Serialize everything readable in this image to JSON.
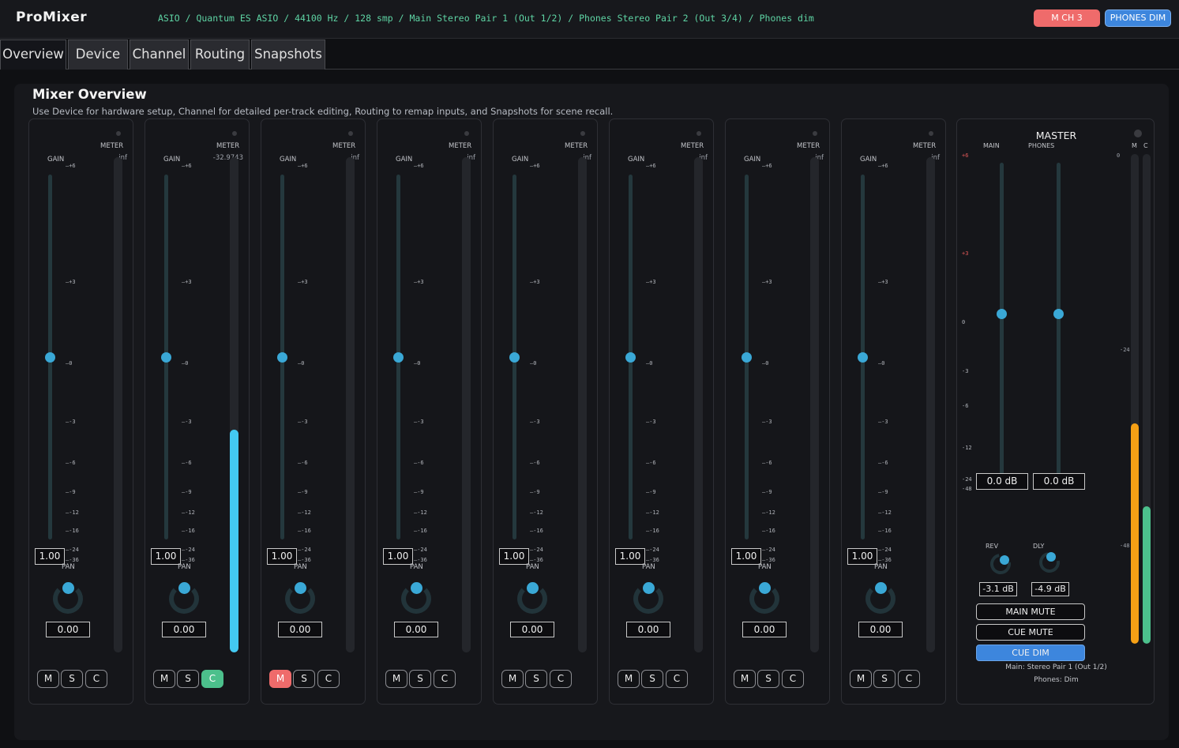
{
  "app": {
    "title": "ProMixer",
    "status": "ASIO / Quantum ES ASIO / 44100 Hz / 128 smp / Main Stereo Pair 1 (Out 1/2) / Phones Stereo Pair 2 (Out 3/4) / Phones dim",
    "badges": {
      "mch": "M CH 3",
      "phones_dim": "PHONES DIM"
    }
  },
  "tabs": [
    {
      "label": "Overview",
      "active": true
    },
    {
      "label": "Device"
    },
    {
      "label": "Channel"
    },
    {
      "label": "Routing"
    },
    {
      "label": "Snapshots"
    }
  ],
  "overview": {
    "title": "Mixer Overview",
    "subtitle": "Use Device for hardware setup, Channel for detailed per-track editing, Routing to remap inputs, and Snapshots for scene recall."
  },
  "strip_labels": {
    "gain": "GAIN",
    "meter": "METER",
    "pan": "PAN"
  },
  "gain_ticks": [
    "+6",
    "+3",
    "0",
    "-3",
    "-6",
    "-9",
    "-12",
    "-16",
    "-24",
    "-36"
  ],
  "channels": [
    {
      "meter_value": "-inf",
      "meter_level": 0,
      "gain": "1.00",
      "pan": "0.00",
      "mute": false,
      "solo": false,
      "cue": false
    },
    {
      "meter_value": "-32.9743",
      "meter_level": 0.45,
      "gain": "1.00",
      "pan": "0.00",
      "mute": false,
      "solo": false,
      "cue": true
    },
    {
      "meter_value": "-inf",
      "meter_level": 0,
      "gain": "1.00",
      "pan": "0.00",
      "mute": true,
      "solo": false,
      "cue": false
    },
    {
      "meter_value": "-inf",
      "meter_level": 0,
      "gain": "1.00",
      "pan": "0.00",
      "mute": false,
      "solo": false,
      "cue": false
    },
    {
      "meter_value": "-inf",
      "meter_level": 0,
      "gain": "1.00",
      "pan": "0.00",
      "mute": false,
      "solo": false,
      "cue": false
    },
    {
      "meter_value": "-inf",
      "meter_level": 0,
      "gain": "1.00",
      "pan": "0.00",
      "mute": false,
      "solo": false,
      "cue": false
    },
    {
      "meter_value": "-inf",
      "meter_level": 0,
      "gain": "1.00",
      "pan": "0.00",
      "mute": false,
      "solo": false,
      "cue": false
    },
    {
      "meter_value": "-inf",
      "meter_level": 0,
      "gain": "1.00",
      "pan": "0.00",
      "mute": false,
      "solo": false,
      "cue": false
    }
  ],
  "buttons": {
    "mute": "M",
    "solo": "S",
    "cue": "C"
  },
  "master": {
    "title": "MASTER",
    "main_label": "MAIN",
    "phones_label": "PHONES",
    "meter_m_label": "M",
    "meter_c_label": "C",
    "ticks": [
      "+6",
      "+3",
      "0",
      "-3",
      "-6",
      "-12",
      "-24",
      "-48"
    ],
    "meter_ticks": [
      "0",
      "-24",
      "-48"
    ],
    "main_value": "0.0 dB",
    "phones_value": "0.0 dB",
    "rev_label": "REV",
    "dly_label": "DLY",
    "rev_value": "-3.1 dB",
    "dly_value": "-4.9 dB",
    "main_mute_label": "MAIN MUTE",
    "cue_mute_label": "CUE MUTE",
    "cue_dim_label": "CUE DIM",
    "cue_dim_active": true,
    "info_main": "Main: Stereo Pair 1 (Out 1/2)",
    "info_phones": "Phones: Dim",
    "meter_m_level": 0.45,
    "meter_c_level": 0.28,
    "colors": {
      "meter_m": "#f5a015",
      "meter_c": "#4cc08c",
      "tick_red": "#e05858"
    }
  }
}
